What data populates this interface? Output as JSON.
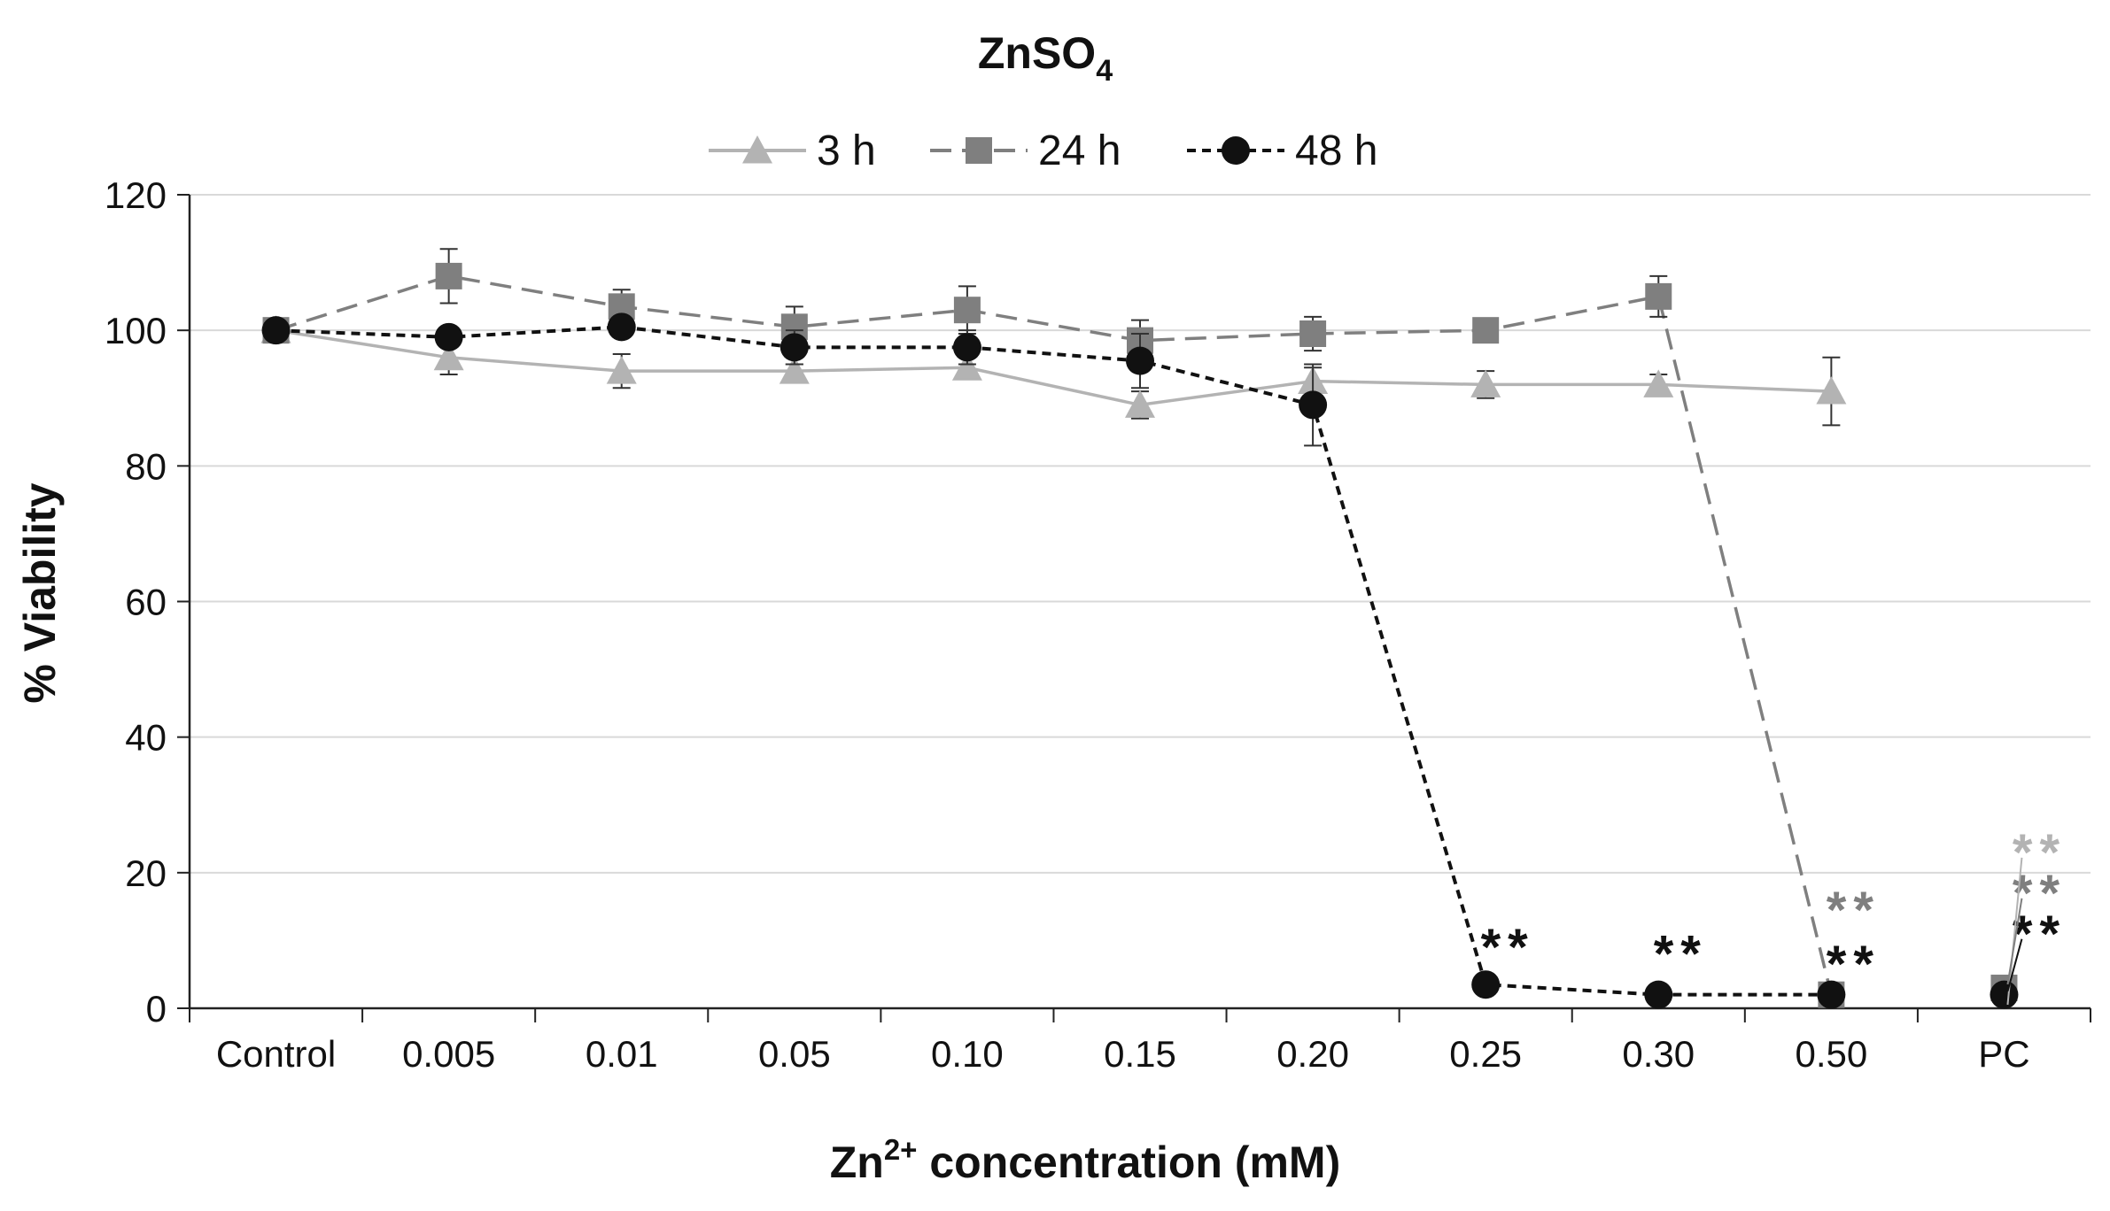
{
  "chart_data": {
    "type": "line",
    "title": "ZnSO",
    "title_subscript": "4",
    "xlabel_prefix": "Zn",
    "xlabel_superscript": "2+",
    "xlabel_suffix": " concentration (mM)",
    "ylabel": "% Viability",
    "ylim": [
      0,
      120
    ],
    "yticks": [
      0,
      20,
      40,
      60,
      80,
      100,
      120
    ],
    "grid": true,
    "legend_position": "top-center",
    "categories": [
      "Control",
      "0.005",
      "0.01",
      "0.05",
      "0.10",
      "0.15",
      "0.20",
      "0.25",
      "0.30",
      "0.50",
      "PC"
    ],
    "series": [
      {
        "name": "3 h",
        "color": "#b3b3b3",
        "marker": "triangle",
        "dash": "solid",
        "values": [
          100,
          96,
          94,
          94,
          94.5,
          89,
          92.5,
          92,
          92,
          91,
          null
        ],
        "errors": [
          0,
          2.5,
          2.5,
          1,
          1.5,
          2,
          2,
          2,
          1.5,
          5,
          null
        ]
      },
      {
        "name": "24 h",
        "color": "#7f7f7f",
        "marker": "square",
        "dash": "dashed",
        "values": [
          100,
          108,
          103.5,
          100.5,
          103,
          98.5,
          99.5,
          100,
          105,
          2,
          3
        ],
        "errors": [
          0,
          4,
          2.5,
          3,
          3.5,
          3,
          2.5,
          0.5,
          3,
          0,
          0
        ]
      },
      {
        "name": "48 h",
        "color": "#111111",
        "marker": "circle",
        "dash": "dotted",
        "values": [
          100,
          99,
          100.5,
          97.5,
          97.5,
          95.5,
          89,
          3.5,
          2,
          2,
          2
        ],
        "errors": [
          0,
          0.5,
          1.5,
          2.5,
          2.5,
          4,
          6,
          0,
          0,
          0,
          0
        ]
      }
    ],
    "annotations": [
      {
        "category": "0.25",
        "series": "48 h",
        "text": "**",
        "color": "#111111",
        "y": 9
      },
      {
        "category": "0.30",
        "series": "48 h",
        "text": "**",
        "color": "#111111",
        "y": 8
      },
      {
        "category": "0.50",
        "series": "48 h",
        "text": "**",
        "color": "#111111",
        "y": 6.5
      },
      {
        "category": "0.50",
        "series": "24 h",
        "text": "**",
        "color": "#7f7f7f",
        "y": 14.5
      },
      {
        "category": "PC",
        "series": "3 h",
        "text": "**",
        "color": "#b3b3b3",
        "y": 23
      },
      {
        "category": "PC",
        "series": "24 h",
        "text": "**",
        "color": "#7f7f7f",
        "y": 17
      },
      {
        "category": "PC",
        "series": "48 h",
        "text": "**",
        "color": "#111111",
        "y": 11
      }
    ]
  }
}
